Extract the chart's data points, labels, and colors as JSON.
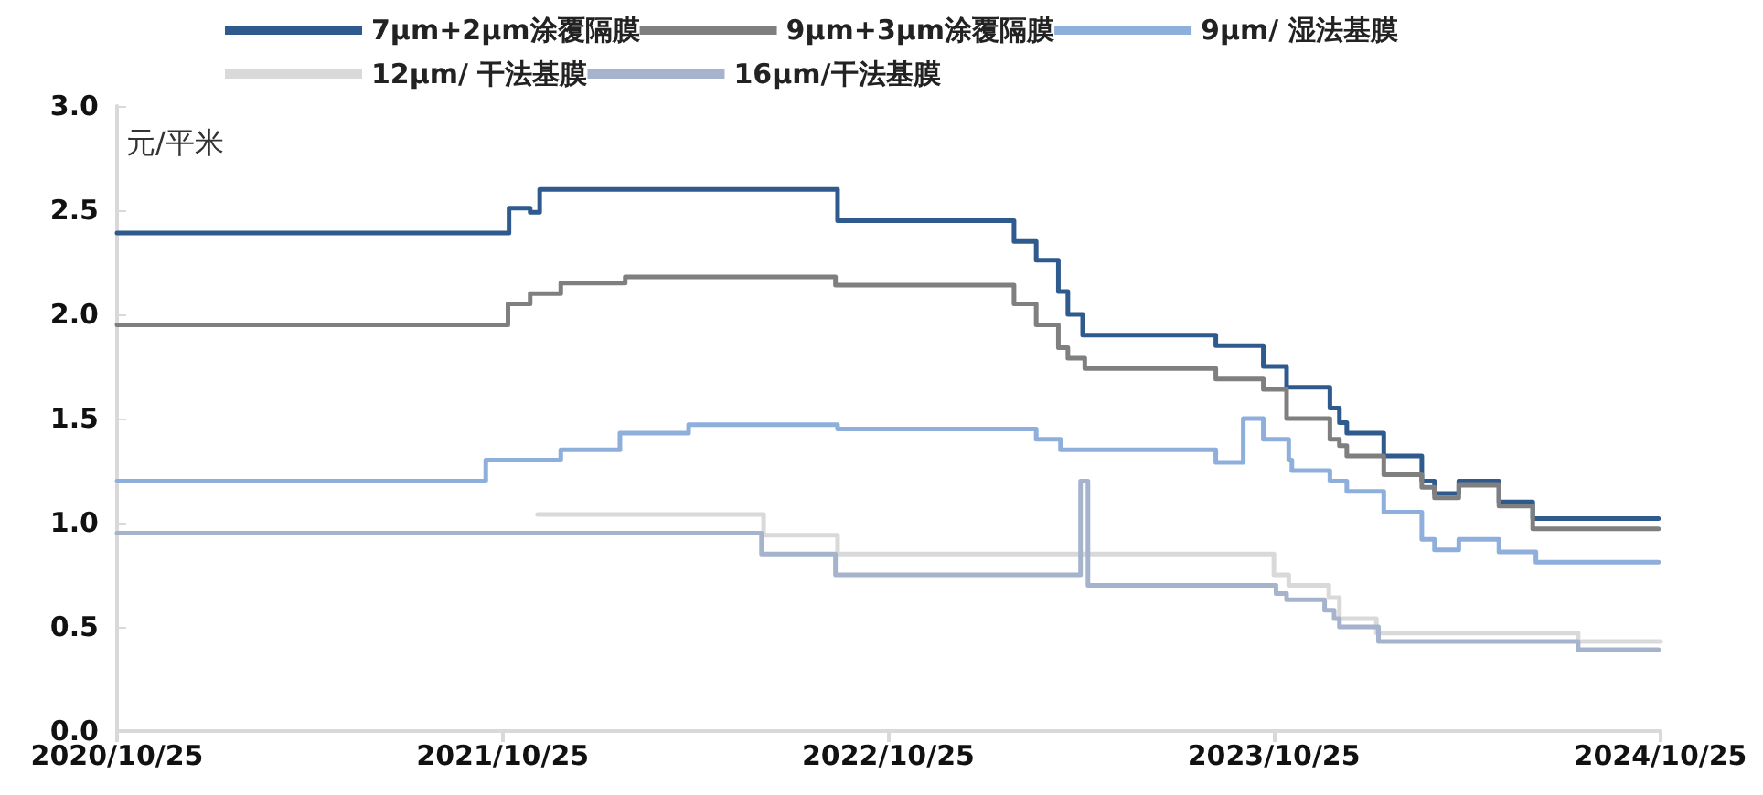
{
  "chart_data": {
    "type": "step",
    "ylabel": "元/平米",
    "xlim": [
      "2020-10-25",
      "2024-10-25"
    ],
    "xticks": [
      {
        "value": "2020-10-25",
        "label": "2020/10/25"
      },
      {
        "value": "2021-10-25",
        "label": "2021/10/25"
      },
      {
        "value": "2022-10-25",
        "label": "2022/10/25"
      },
      {
        "value": "2023-10-25",
        "label": "2023/10/25"
      },
      {
        "value": "2024-10-25",
        "label": "2024/10/25"
      }
    ],
    "ylim": [
      0,
      3
    ],
    "yticks": [
      {
        "value": 0,
        "label": "0.0"
      },
      {
        "value": 0.5,
        "label": "0.5"
      },
      {
        "value": 1,
        "label": "1.0"
      },
      {
        "value": 1.5,
        "label": "1.5"
      },
      {
        "value": 2,
        "label": "2.0"
      },
      {
        "value": 2.5,
        "label": "2.5"
      },
      {
        "value": 3,
        "label": "3.0"
      }
    ],
    "grid": false,
    "legend": "top",
    "marker": "none",
    "line_style": "solid",
    "series": [
      {
        "name": "7μm+2μm涂覆隔膜",
        "color": "#2e5a8e",
        "x": [
          "2020-10-25",
          "2021-10-31",
          "2021-11-20",
          "2021-11-29",
          "2022-09-07",
          "2023-02-21",
          "2023-03-14",
          "2023-04-04",
          "2023-04-13",
          "2023-04-27",
          "2023-08-31",
          "2023-10-15",
          "2023-11-06",
          "2023-12-17",
          "2023-12-26",
          "2024-01-02",
          "2024-02-06",
          "2024-03-13",
          "2024-03-25",
          "2024-04-17",
          "2024-05-25",
          "2024-06-26",
          "2024-10-23"
        ],
        "values": [
          2.39,
          2.51,
          2.49,
          2.6,
          2.45,
          2.35,
          2.26,
          2.11,
          2.0,
          1.9,
          1.85,
          1.75,
          1.65,
          1.55,
          1.48,
          1.43,
          1.32,
          1.2,
          1.14,
          1.2,
          1.1,
          1.02,
          1.02
        ]
      },
      {
        "name": "9μm+3μm涂覆隔膜",
        "color": "#7f7f7f",
        "x": [
          "2020-10-25",
          "2021-10-30",
          "2021-11-20",
          "2021-12-19",
          "2022-02-18",
          "2022-09-05",
          "2023-02-21",
          "2023-03-14",
          "2023-04-04",
          "2023-04-13",
          "2023-04-29",
          "2023-08-31",
          "2023-10-15",
          "2023-11-06",
          "2023-12-17",
          "2023-12-26",
          "2024-01-02",
          "2024-02-06",
          "2024-03-13",
          "2024-03-25",
          "2024-04-17",
          "2024-05-25",
          "2024-06-26",
          "2024-10-23"
        ],
        "values": [
          1.95,
          2.05,
          2.1,
          2.15,
          2.18,
          2.14,
          2.05,
          1.95,
          1.84,
          1.79,
          1.74,
          1.69,
          1.64,
          1.5,
          1.4,
          1.37,
          1.32,
          1.23,
          1.17,
          1.12,
          1.18,
          1.08,
          0.97,
          0.97
        ]
      },
      {
        "name": "9μm/ 湿法基膜",
        "color": "#8eaedb",
        "x": [
          "2020-10-25",
          "2021-10-09",
          "2021-12-19",
          "2022-02-13",
          "2022-04-19",
          "2022-09-07",
          "2023-03-14",
          "2023-04-06",
          "2023-08-31",
          "2023-09-26",
          "2023-10-15",
          "2023-11-08",
          "2023-11-11",
          "2023-12-17",
          "2024-01-02",
          "2024-02-06",
          "2024-03-13",
          "2024-03-25",
          "2024-04-17",
          "2024-05-25",
          "2024-06-29",
          "2024-10-23"
        ],
        "values": [
          1.2,
          1.3,
          1.35,
          1.43,
          1.47,
          1.45,
          1.4,
          1.35,
          1.29,
          1.5,
          1.4,
          1.3,
          1.25,
          1.2,
          1.15,
          1.05,
          0.92,
          0.87,
          0.92,
          0.86,
          0.81,
          0.81
        ]
      },
      {
        "name": "12μm/ 干法基膜",
        "color": "#d9d9d9",
        "x": [
          "2021-11-27",
          "2022-06-29",
          "2022-09-07",
          "2023-10-25",
          "2023-11-08",
          "2023-12-16",
          "2023-12-26",
          "2024-01-30",
          "2024-08-08",
          "2024-10-25"
        ],
        "values": [
          1.04,
          0.94,
          0.85,
          0.75,
          0.7,
          0.64,
          0.54,
          0.47,
          0.43,
          0.43
        ]
      },
      {
        "name": "16μm/干法基膜",
        "color": "#a5b4cc",
        "x": [
          "2020-10-25",
          "2022-06-27",
          "2022-09-05",
          "2023-04-25",
          "2023-05-02",
          "2023-10-27",
          "2023-11-06",
          "2023-12-12",
          "2023-12-21",
          "2023-12-26",
          "2024-02-01",
          "2024-08-08",
          "2024-10-23"
        ],
        "values": [
          0.95,
          0.85,
          0.75,
          1.2,
          0.7,
          0.66,
          0.63,
          0.58,
          0.54,
          0.5,
          0.43,
          0.39,
          0.39
        ]
      }
    ]
  }
}
